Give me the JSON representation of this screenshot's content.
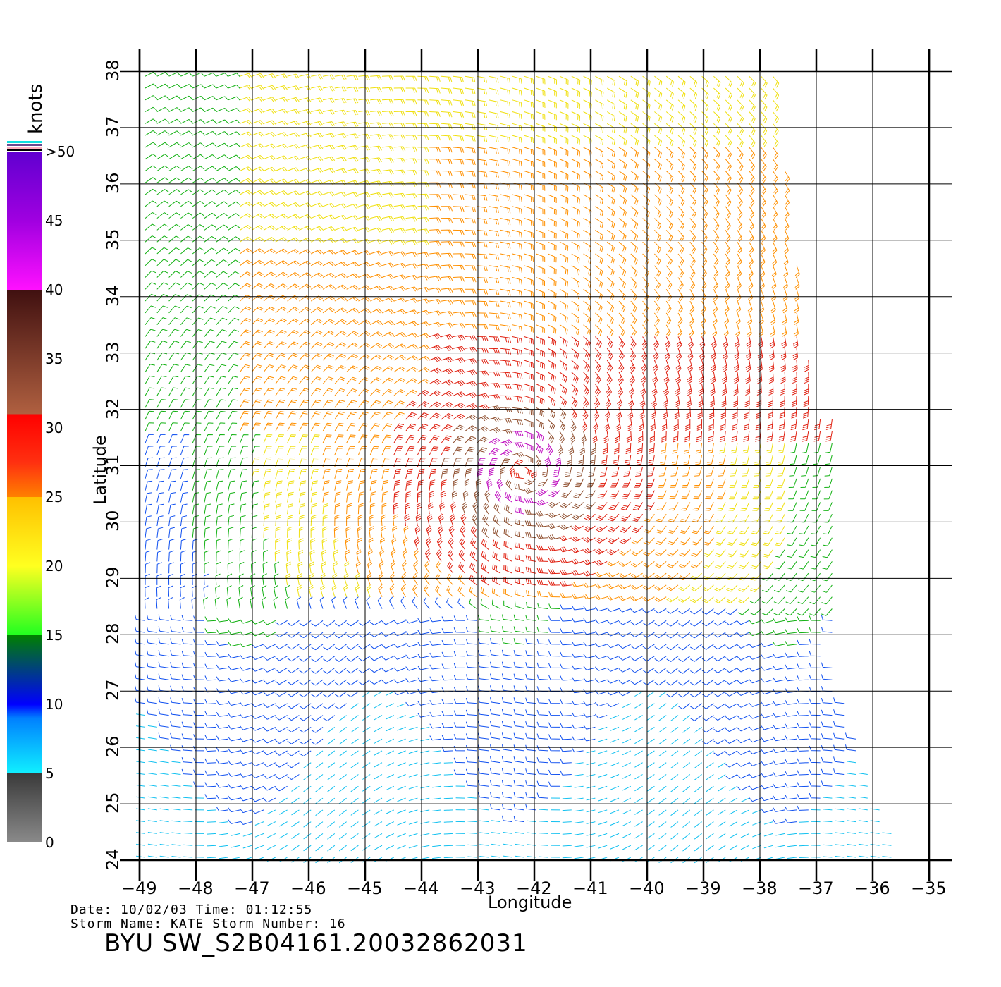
{
  "legend": {
    "title": "knots",
    "labels": [
      ">50",
      "45",
      "40",
      "35",
      "30",
      "25",
      "20",
      "15",
      "10",
      "5",
      "0"
    ],
    "colors": [
      "#8a8a8a",
      "#3a3a3a",
      "#10f0ff",
      "#0080ff",
      "#0000ff",
      "#008000",
      "#20ff20",
      "#ffff20",
      "#ffc000",
      "#ff8000",
      "#ff3010",
      "#ff0000",
      "#b06040",
      "#401010",
      "#ff10ff",
      "#a000e0",
      "#6000d0"
    ]
  },
  "axes": {
    "xlabel": "Longitude",
    "ylabel": "Latitude",
    "xticks": [
      "-49",
      "-48",
      "-47",
      "-46",
      "-45",
      "-44",
      "-43",
      "-42",
      "-41",
      "-40",
      "-39",
      "-38",
      "-37",
      "-36",
      "-35"
    ],
    "yticks": [
      "24",
      "25",
      "26",
      "27",
      "28",
      "29",
      "30",
      "31",
      "32",
      "33",
      "34",
      "35",
      "36",
      "37",
      "38"
    ]
  },
  "info": {
    "date_line": "Date: 10/02/03   Time: 01:12:55",
    "storm_line": "Storm  Name:  KATE    Storm  Number:  16",
    "product": "BYU  SW_S2B04161.20032862031"
  },
  "chart_data": {
    "type": "wind-barb-map",
    "title": "BYU  SW_S2B04161.20032862031",
    "xlabel": "Longitude",
    "ylabel": "Latitude",
    "xlim": [
      -49,
      -35
    ],
    "ylim": [
      24,
      38
    ],
    "units": "knots",
    "grid": true,
    "storm": {
      "name": "KATE",
      "number": 16,
      "date": "10/02/03",
      "time": "01:12:55",
      "center_lon": -42.2,
      "center_lat": 30.9
    },
    "color_scale_knots": [
      0,
      5,
      10,
      15,
      20,
      25,
      30,
      35,
      40,
      45,
      50
    ]
  }
}
